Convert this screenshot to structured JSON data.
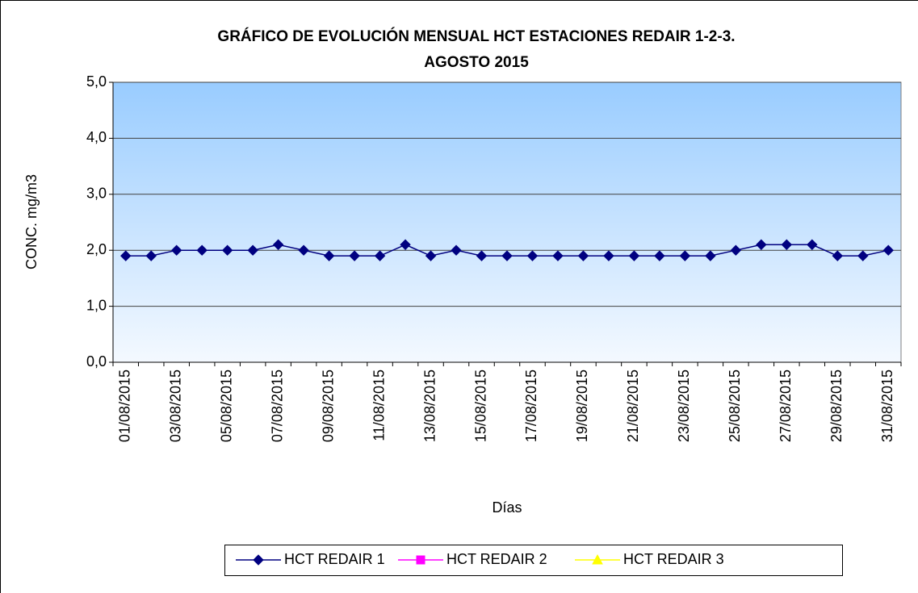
{
  "chart_data": {
    "type": "line",
    "title": [
      "GRÁFICO DE EVOLUCIÓN MENSUAL HCT ESTACIONES REDAIR 1-2-3.",
      "AGOSTO 2015"
    ],
    "x_label": "Días",
    "y_label": "CONC. mg/m3",
    "categories": [
      "01/08/2015",
      null,
      "03/08/2015",
      null,
      "05/08/2015",
      null,
      "07/08/2015",
      null,
      "09/08/2015",
      null,
      "11/08/2015",
      null,
      "13/08/2015",
      null,
      "15/08/2015",
      null,
      "17/08/2015",
      null,
      "19/08/2015",
      null,
      "21/08/2015",
      null,
      "23/08/2015",
      null,
      "25/08/2015",
      null,
      "27/08/2015",
      null,
      "29/08/2015",
      null,
      "31/08/2015"
    ],
    "series": [
      {
        "name": "HCT REDAIR 1",
        "color": "#000080",
        "marker": "diamond",
        "values": [
          1.9,
          1.9,
          2.0,
          2.0,
          2.0,
          2.0,
          2.1,
          2.0,
          1.9,
          1.9,
          1.9,
          2.1,
          1.9,
          2.0,
          1.9,
          1.9,
          1.9,
          1.9,
          1.9,
          1.9,
          1.9,
          1.9,
          1.9,
          1.9,
          2.0,
          2.1,
          2.1,
          2.1,
          1.9,
          1.9,
          2.0
        ]
      },
      {
        "name": "HCT REDAIR 2",
        "color": "#ff00ff",
        "marker": "square",
        "values": [
          null,
          null,
          null,
          null,
          null,
          null,
          null,
          null,
          null,
          null,
          null,
          null,
          null,
          null,
          null,
          null,
          null,
          null,
          null,
          null,
          null,
          null,
          null,
          null,
          null,
          null,
          null,
          null,
          null,
          null,
          null
        ]
      },
      {
        "name": "HCT REDAIR 3",
        "color": "#ffff00",
        "marker": "triangle",
        "values": [
          null,
          null,
          null,
          null,
          null,
          null,
          null,
          null,
          null,
          null,
          null,
          null,
          null,
          null,
          null,
          null,
          null,
          null,
          null,
          null,
          null,
          null,
          null,
          null,
          null,
          null,
          null,
          null,
          null,
          null,
          null
        ]
      }
    ],
    "ylim": [
      0,
      5
    ],
    "yticks": [
      {
        "value": 0,
        "label": "0,0"
      },
      {
        "value": 1,
        "label": "1,0"
      },
      {
        "value": 2,
        "label": "2,0"
      },
      {
        "value": 3,
        "label": "3,0"
      },
      {
        "value": 4,
        "label": "4,0"
      },
      {
        "value": 5,
        "label": "5,0"
      }
    ],
    "grid": true,
    "legend": "bottom"
  }
}
